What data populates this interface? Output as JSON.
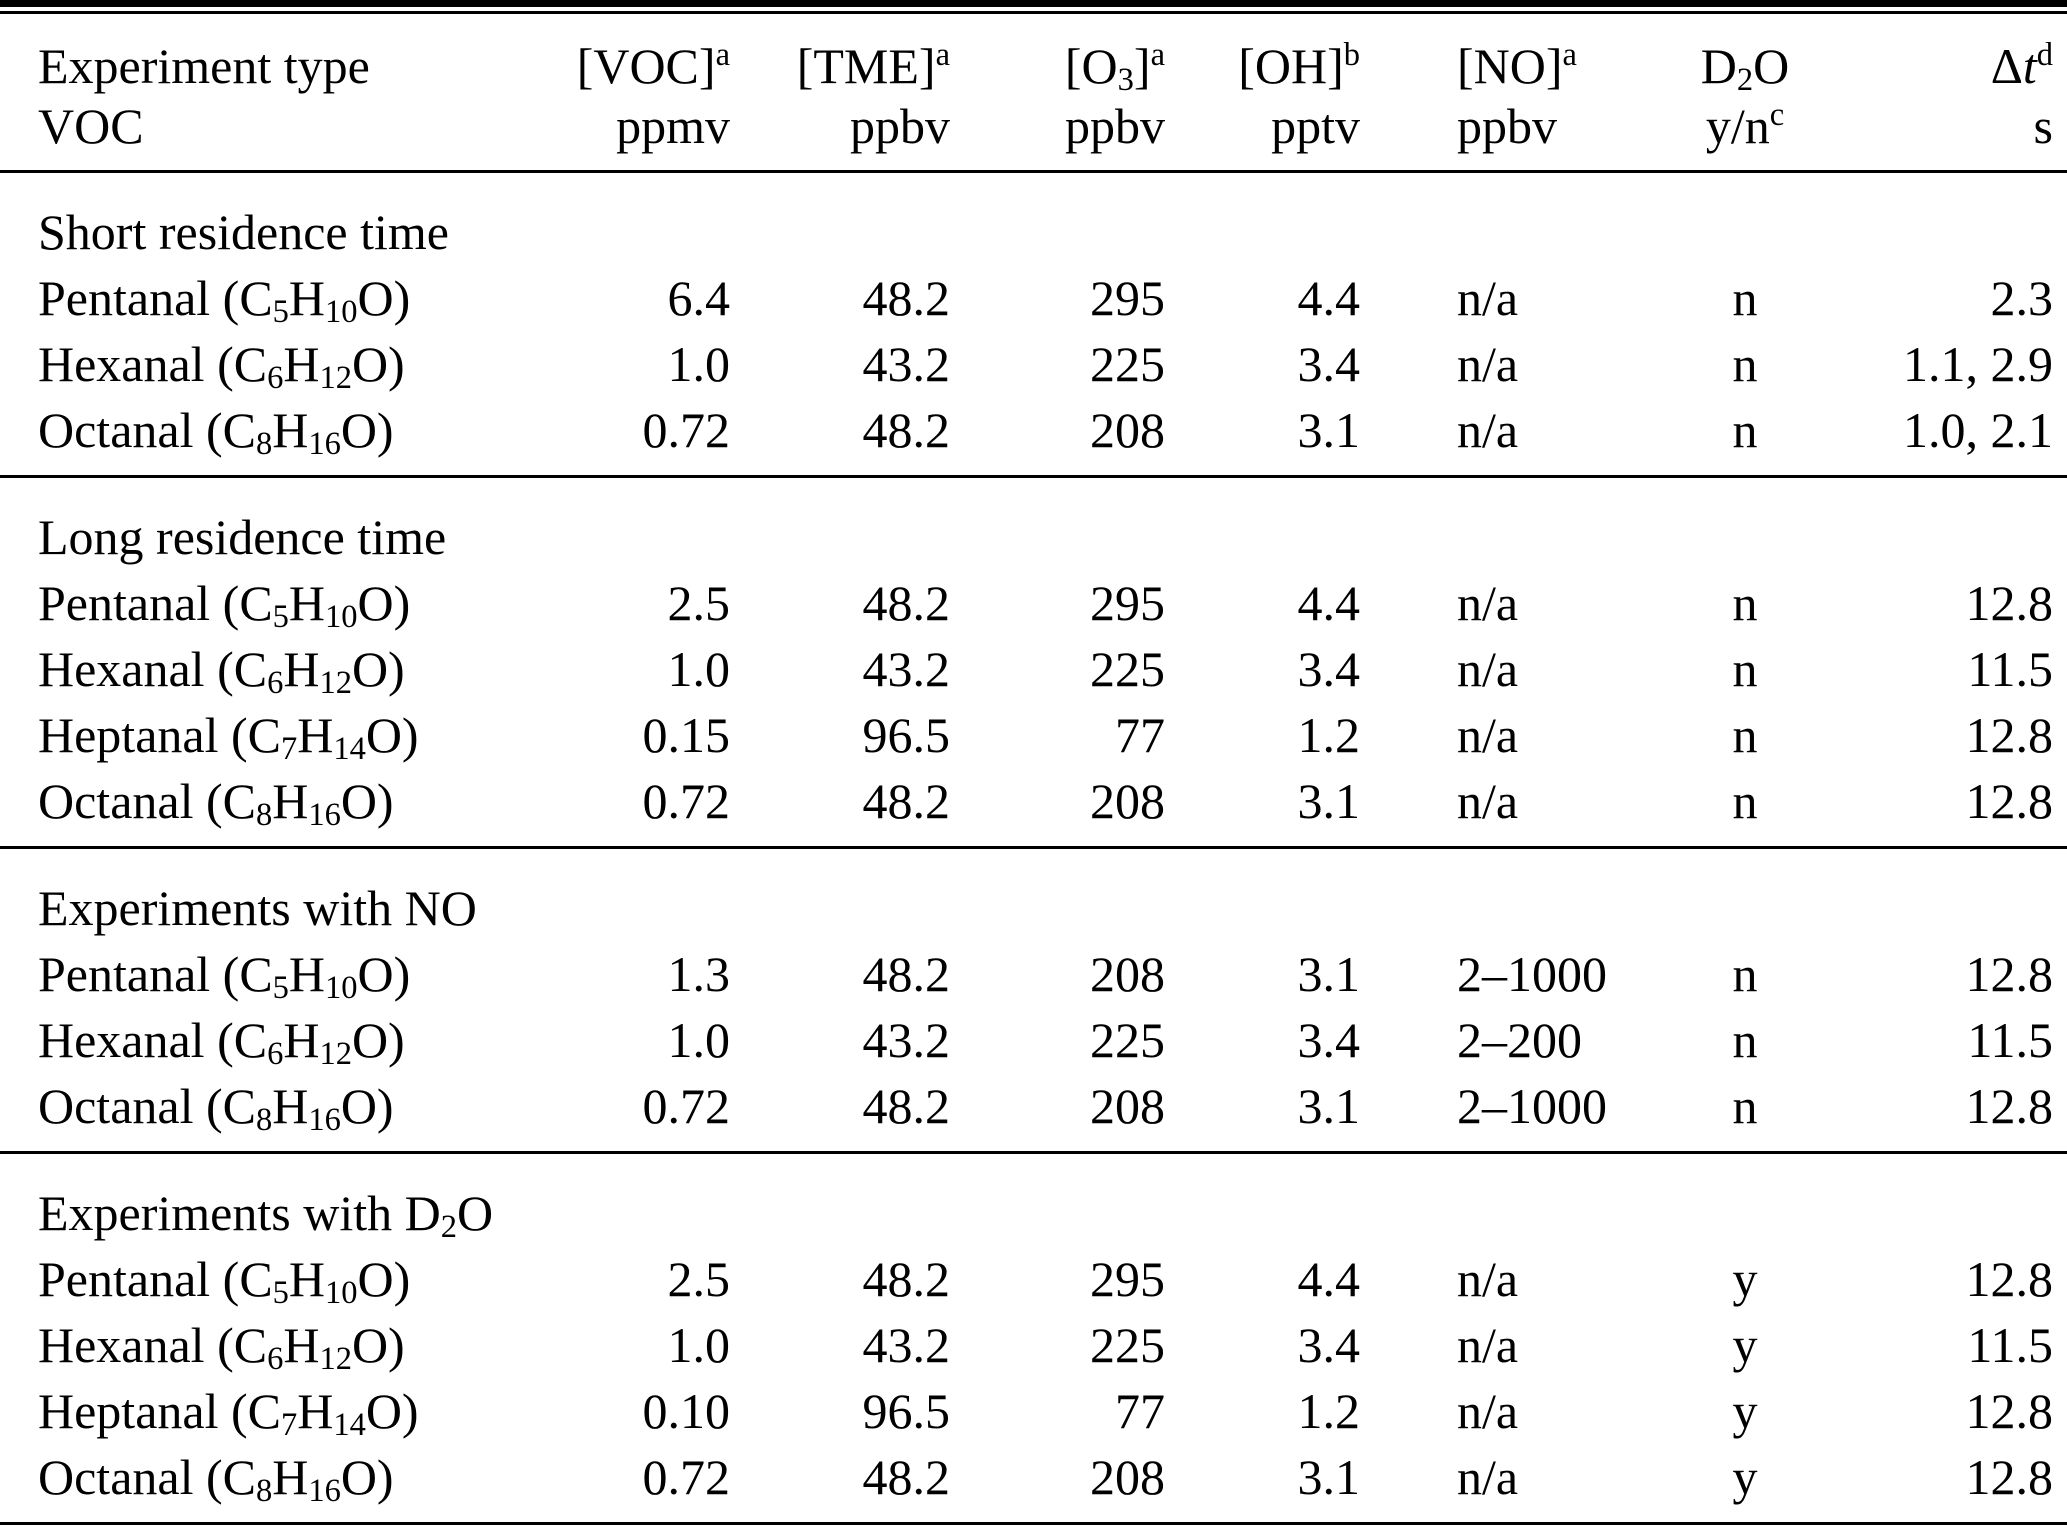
{
  "table": {
    "colors": {
      "text": "#000000",
      "background": "#ffffff",
      "rule": "#000000"
    },
    "columns": [
      {
        "line1": "Experiment type",
        "line2": "VOC"
      },
      {
        "line1": "[VOC]^a^",
        "line2": "ppmv"
      },
      {
        "line1": "[TME]^a^",
        "line2": "ppbv"
      },
      {
        "line1": "[O~3~]^a^",
        "line2": "ppbv"
      },
      {
        "line1": "[OH]^b^",
        "line2": "pptv"
      },
      {
        "line1": "[NO]^a^",
        "line2": "ppbv"
      },
      {
        "line1": "D~2~O",
        "line2": "y/n^c^"
      },
      {
        "line1": "Δ*t*^d^",
        "line2": "s"
      }
    ],
    "sections": [
      {
        "title": "Short residence time",
        "rows": [
          {
            "voc_label": "Pentanal (C~5~H~10~O)",
            "voc": "6.4",
            "tme": "48.2",
            "o3": "295",
            "oh": "4.4",
            "no": "n/a",
            "d2o": "n",
            "dt": "2.3"
          },
          {
            "voc_label": "Hexanal (C~6~H~12~O)",
            "voc": "1.0",
            "tme": "43.2",
            "o3": "225",
            "oh": "3.4",
            "no": "n/a",
            "d2o": "n",
            "dt": "1.1, 2.9"
          },
          {
            "voc_label": "Octanal (C~8~H~16~O)",
            "voc": "0.72",
            "tme": "48.2",
            "o3": "208",
            "oh": "3.1",
            "no": "n/a",
            "d2o": "n",
            "dt": "1.0, 2.1"
          }
        ]
      },
      {
        "title": "Long residence time",
        "rows": [
          {
            "voc_label": "Pentanal (C~5~H~10~O)",
            "voc": "2.5",
            "tme": "48.2",
            "o3": "295",
            "oh": "4.4",
            "no": "n/a",
            "d2o": "n",
            "dt": "12.8"
          },
          {
            "voc_label": "Hexanal (C~6~H~12~O)",
            "voc": "1.0",
            "tme": "43.2",
            "o3": "225",
            "oh": "3.4",
            "no": "n/a",
            "d2o": "n",
            "dt": "11.5"
          },
          {
            "voc_label": "Heptanal (C~7~H~14~O)",
            "voc": "0.15",
            "tme": "96.5",
            "o3": "77",
            "oh": "1.2",
            "no": "n/a",
            "d2o": "n",
            "dt": "12.8"
          },
          {
            "voc_label": "Octanal (C~8~H~16~O)",
            "voc": "0.72",
            "tme": "48.2",
            "o3": "208",
            "oh": "3.1",
            "no": "n/a",
            "d2o": "n",
            "dt": "12.8"
          }
        ]
      },
      {
        "title": "Experiments with NO",
        "rows": [
          {
            "voc_label": "Pentanal (C~5~H~10~O)",
            "voc": "1.3",
            "tme": "48.2",
            "o3": "208",
            "oh": "3.1",
            "no": "2–1000",
            "d2o": "n",
            "dt": "12.8"
          },
          {
            "voc_label": "Hexanal (C~6~H~12~O)",
            "voc": "1.0",
            "tme": "43.2",
            "o3": "225",
            "oh": "3.4",
            "no": "2–200",
            "d2o": "n",
            "dt": "11.5"
          },
          {
            "voc_label": "Octanal (C~8~H~16~O)",
            "voc": "0.72",
            "tme": "48.2",
            "o3": "208",
            "oh": "3.1",
            "no": "2–1000",
            "d2o": "n",
            "dt": "12.8"
          }
        ]
      },
      {
        "title": "Experiments with D~2~O",
        "rows": [
          {
            "voc_label": "Pentanal (C~5~H~10~O)",
            "voc": "2.5",
            "tme": "48.2",
            "o3": "295",
            "oh": "4.4",
            "no": "n/a",
            "d2o": "y",
            "dt": "12.8"
          },
          {
            "voc_label": "Hexanal (C~6~H~12~O)",
            "voc": "1.0",
            "tme": "43.2",
            "o3": "225",
            "oh": "3.4",
            "no": "n/a",
            "d2o": "y",
            "dt": "11.5"
          },
          {
            "voc_label": "Heptanal (C~7~H~14~O)",
            "voc": "0.10",
            "tme": "96.5",
            "o3": "77",
            "oh": "1.2",
            "no": "n/a",
            "d2o": "y",
            "dt": "12.8"
          },
          {
            "voc_label": "Octanal (C~8~H~16~O)",
            "voc": "0.72",
            "tme": "48.2",
            "o3": "208",
            "oh": "3.1",
            "no": "n/a",
            "d2o": "y",
            "dt": "12.8"
          }
        ]
      }
    ]
  }
}
